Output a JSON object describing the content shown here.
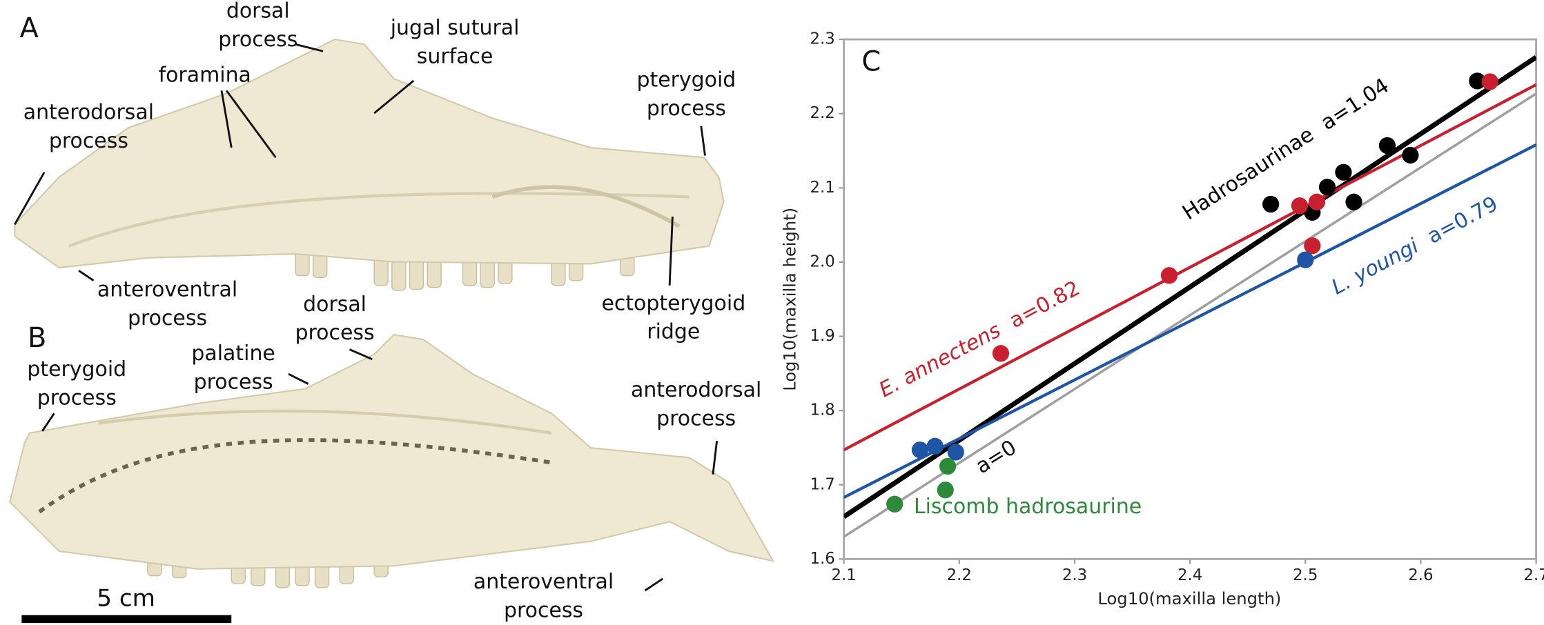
{
  "panels": {
    "A": {
      "letter": "A",
      "labels": [
        {
          "lines": [
            "dorsal",
            "process"
          ]
        },
        {
          "lines": [
            "jugal sutural",
            "surface"
          ]
        },
        {
          "lines": [
            "foramina"
          ]
        },
        {
          "lines": [
            "anterodorsal",
            "process"
          ]
        },
        {
          "lines": [
            "pterygoid",
            "process"
          ]
        },
        {
          "lines": [
            "anteroventral",
            "process"
          ]
        },
        {
          "lines": [
            "ectopterygoid",
            "ridge"
          ]
        }
      ]
    },
    "B": {
      "letter": "B",
      "labels": [
        {
          "lines": [
            "dorsal",
            "process"
          ]
        },
        {
          "lines": [
            "palatine",
            "process"
          ]
        },
        {
          "lines": [
            "pterygoid",
            "process"
          ]
        },
        {
          "lines": [
            "anterodorsal",
            "process"
          ]
        },
        {
          "lines": [
            "anteroventral",
            "process"
          ]
        }
      ],
      "scale_bar": "5 cm"
    }
  },
  "chart_data": {
    "type": "scatter",
    "panel_label": "C",
    "xlabel": "Log10(maxilla length)",
    "ylabel": "Log10(maxilla height)",
    "xlim": [
      2.1,
      2.7
    ],
    "ylim": [
      1.6,
      2.3
    ],
    "xticks": [
      2.1,
      2.2,
      2.3,
      2.4,
      2.5,
      2.6,
      2.7
    ],
    "yticks": [
      1.6,
      1.7,
      1.8,
      1.9,
      {
        "value": 2,
        "label": "2.0"
      },
      2.1,
      2.2,
      2.3
    ],
    "series": [
      {
        "name": "Hadrosaurinae",
        "annotation": "a=1.04",
        "color": "#000000",
        "x": [
          2.47,
          2.506,
          2.519,
          2.533,
          2.542,
          2.571,
          2.591,
          2.649
        ],
        "values": [
          2.078,
          2.067,
          2.101,
          2.121,
          2.081,
          2.157,
          2.144,
          2.244
        ],
        "fit_x": [
          2.1,
          2.7
        ],
        "fit_values": [
          1.657,
          2.276
        ]
      },
      {
        "name": "E. annectens",
        "annotation": "a=0.82",
        "color": "#c8202f",
        "x": [
          2.236,
          2.382,
          2.495,
          2.51,
          2.506,
          2.66
        ],
        "values": [
          1.877,
          1.982,
          2.076,
          2.081,
          2.022,
          2.243
        ],
        "fit_x": [
          2.1,
          2.7
        ],
        "fit_values": [
          1.747,
          2.239
        ]
      },
      {
        "name": "L. youngi",
        "annotation": "a=0.79",
        "color": "#1f55a5",
        "x": [
          2.166,
          2.179,
          2.197,
          2.5
        ],
        "values": [
          1.747,
          1.752,
          1.744,
          2.003
        ],
        "fit_x": [
          2.1,
          2.7
        ],
        "fit_values": [
          1.683,
          2.158
        ]
      },
      {
        "name": "Liscomb hadrosaurine",
        "color": "#2e8a3b",
        "x": [
          2.19,
          2.188,
          2.144
        ],
        "values": [
          1.725,
          1.693,
          1.674
        ]
      }
    ],
    "reference_line": {
      "annotation": "a=0",
      "color": "#a0a0a0",
      "x": [
        2.1,
        2.7
      ],
      "values": [
        1.63,
        2.227
      ]
    }
  }
}
